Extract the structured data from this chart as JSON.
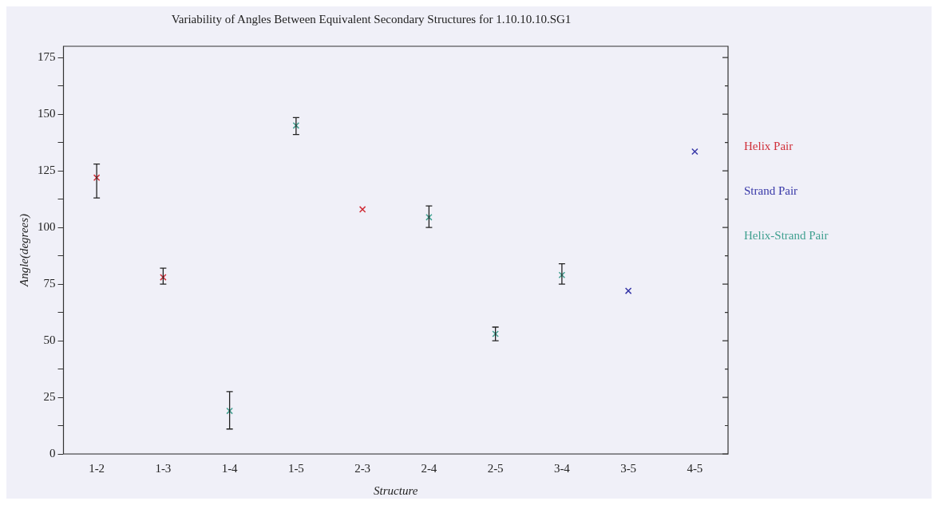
{
  "chart_data": {
    "type": "scatter",
    "title": "Variability of Angles Between Equivalent Secondary Structures for 1.10.10.10.SG1",
    "xlabel": "Structure",
    "ylabel": "Angle(degrees)",
    "categories": [
      "1-2",
      "1-3",
      "1-4",
      "1-5",
      "2-3",
      "2-4",
      "2-5",
      "3-4",
      "3-5",
      "4-5"
    ],
    "series": [
      {
        "name": "Helix Pair",
        "color": "#d0303a",
        "values": [
          122,
          78,
          null,
          null,
          108,
          null,
          null,
          null,
          null,
          null
        ],
        "errors": [
          [
            113,
            128
          ],
          [
            75,
            82
          ],
          null,
          null,
          null,
          null,
          null,
          null,
          null,
          null
        ]
      },
      {
        "name": "Strand Pair",
        "color": "#3838a8",
        "values": [
          null,
          null,
          null,
          null,
          null,
          null,
          null,
          null,
          72,
          133.5
        ],
        "errors": [
          null,
          null,
          null,
          null,
          null,
          null,
          null,
          null,
          null,
          null
        ]
      },
      {
        "name": "Helix-Strand Pair",
        "color": "#40a090",
        "values": [
          null,
          null,
          19,
          145,
          null,
          104.5,
          53,
          79,
          null,
          null
        ],
        "errors": [
          null,
          null,
          [
            11,
            27.5
          ],
          [
            141,
            148.5
          ],
          null,
          [
            100,
            109.5
          ],
          [
            50,
            56
          ],
          [
            75,
            84
          ],
          null,
          null
        ]
      }
    ],
    "ylim": [
      0,
      180
    ],
    "yticks": [
      0,
      {
        "value": 12.5,
        "label": null
      },
      25,
      {
        "value": 37.5,
        "label": null
      },
      50,
      {
        "value": 62.5,
        "label": null
      },
      75,
      {
        "value": 87.5,
        "label": null
      },
      100,
      {
        "value": 112.5,
        "label": null
      },
      125,
      {
        "value": 137.5,
        "label": null
      },
      150,
      {
        "value": 162.5,
        "label": null
      },
      175
    ],
    "marker": "cross",
    "legend": "right",
    "grid": false
  }
}
